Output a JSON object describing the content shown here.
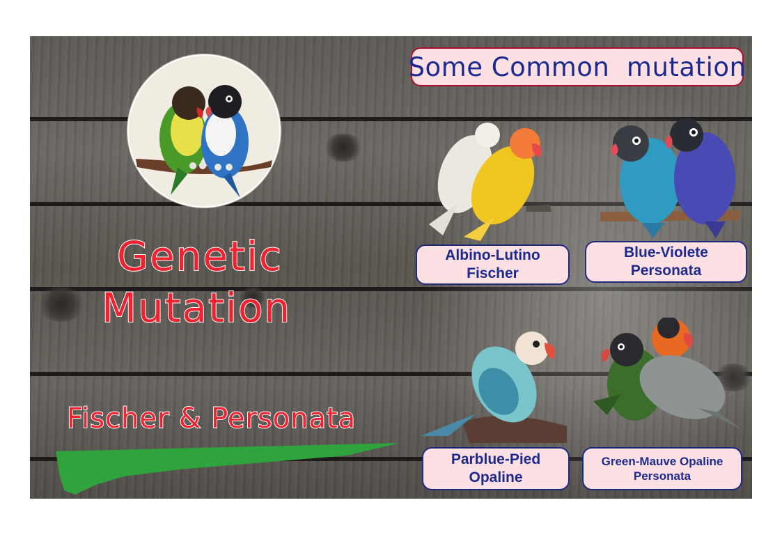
{
  "banner": {
    "title": "Some Common  mutation"
  },
  "headline": {
    "line1": "Genetic",
    "line2": "Mutation"
  },
  "species": {
    "text": "Fischer & Personata"
  },
  "mutations": [
    {
      "line1": "Albino-Lutino",
      "line2": "Fischer"
    },
    {
      "line1": "Blue-Violete",
      "line2": "Personata"
    },
    {
      "line1": "Parblue-Pied",
      "line2": "Opaline"
    },
    {
      "line1": "Green-Mauve Opaline",
      "line2": "Personata"
    }
  ],
  "colors": {
    "banner_text": "#1c2a90",
    "banner_bg": "#fde0e4",
    "banner_border": "#b00f2b",
    "headline_text": "#f0222f",
    "underline_brush": "#2fa43c",
    "wood_base": "#5d5a56"
  },
  "icons": [
    "lovebird-pair-logo",
    "albino-lutino-fischer-photo",
    "blue-violete-personata-photo",
    "parblue-pied-opaline-photo",
    "green-mauve-opaline-personata-photo"
  ]
}
